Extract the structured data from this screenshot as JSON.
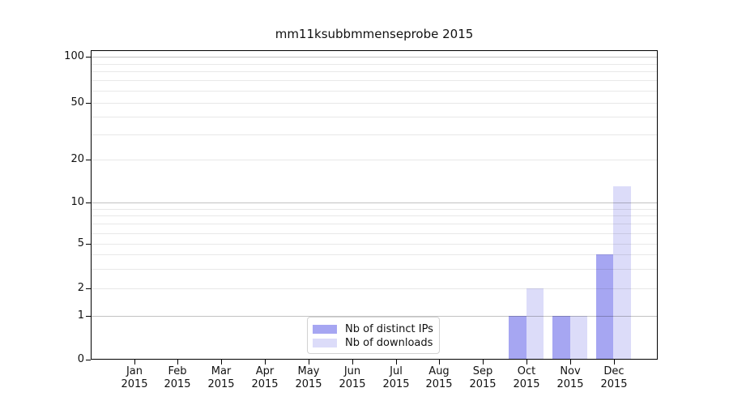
{
  "chart_data": {
    "type": "bar",
    "title": "mm11ksubbmmenseprobe 2015",
    "x": {
      "months": [
        "Jan",
        "Feb",
        "Mar",
        "Apr",
        "May",
        "Jun",
        "Jul",
        "Aug",
        "Sep",
        "Oct",
        "Nov",
        "Dec"
      ],
      "year": "2015"
    },
    "y_axis": {
      "scale": "symlog",
      "major_ticks": [
        0,
        1,
        2,
        5,
        10,
        20,
        50,
        100
      ],
      "decade_gridlines": [
        1,
        10,
        100
      ],
      "minor_gridlines": [
        3,
        4,
        6,
        7,
        8,
        9,
        30,
        40,
        60,
        70,
        80,
        90
      ],
      "ylim_bottom": 0
    },
    "series": [
      {
        "name": "Nb of distinct IPs",
        "color": "#a6a6f2",
        "values": [
          0,
          0,
          0,
          0,
          0,
          0,
          0,
          0,
          0,
          1,
          1,
          4
        ]
      },
      {
        "name": "Nb of downloads",
        "color": "#dcdcf9",
        "values": [
          0,
          0,
          0,
          0,
          0,
          0,
          0,
          0,
          0,
          2,
          1,
          13
        ]
      }
    ],
    "legend": {
      "position": "lower-center"
    }
  }
}
